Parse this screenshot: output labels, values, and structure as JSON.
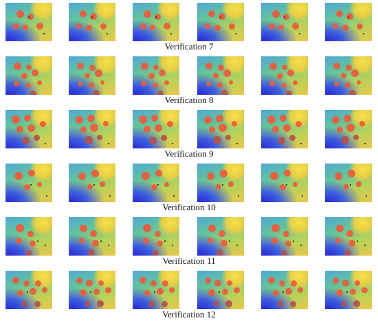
{
  "rows": [
    {
      "label": "Verification 7"
    },
    {
      "label": "Verification 8"
    },
    {
      "label": "Verification 9"
    },
    {
      "label": "Verification 10"
    },
    {
      "label": "Verification 11"
    },
    {
      "label": "Verification 12"
    }
  ],
  "colors": {
    "anomaly": "#ec5a3c",
    "anomaly_dark": "#b3504e",
    "low": "#2b2bd0",
    "mid": "#64c39a",
    "high": "#f5e04a"
  }
}
